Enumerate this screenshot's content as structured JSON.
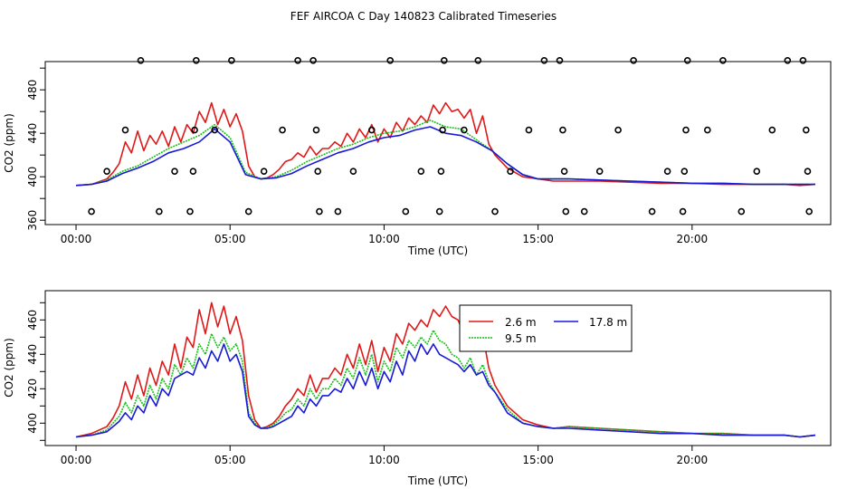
{
  "title": "FEF AIRCOA C  Day 140823  Calibrated Timeseries",
  "colors": {
    "red": "#e01818",
    "green": "#18c018",
    "blue": "#1818d8",
    "axis": "#000000"
  },
  "chart_data": [
    {
      "type": "scatter+line",
      "xlabel": "Time (UTC)",
      "ylabel": "CO2 (ppm)",
      "xlim": [
        -1,
        24.5
      ],
      "ylim": [
        356,
        506
      ],
      "xticks": [
        0,
        5,
        10,
        15,
        20
      ],
      "xtick_labels": [
        "00:00",
        "05:00",
        "10:00",
        "15:00",
        "20:00"
      ],
      "yticks": [
        360,
        400,
        440,
        480
      ],
      "yticks_minor": [
        380,
        420,
        460,
        500
      ],
      "lines": [
        {
          "name": "2.6 m",
          "color": "red",
          "x": [
            0,
            0.5,
            1,
            1.2,
            1.4,
            1.6,
            1.8,
            2,
            2.2,
            2.4,
            2.6,
            2.8,
            3,
            3.2,
            3.4,
            3.6,
            3.8,
            4,
            4.2,
            4.4,
            4.6,
            4.8,
            5,
            5.2,
            5.4,
            5.6,
            5.8,
            6,
            6.2,
            6.4,
            6.6,
            6.8,
            7,
            7.2,
            7.4,
            7.6,
            7.8,
            8,
            8.2,
            8.4,
            8.6,
            8.8,
            9,
            9.2,
            9.4,
            9.6,
            9.8,
            10,
            10.2,
            10.4,
            10.6,
            10.8,
            11,
            11.2,
            11.4,
            11.6,
            11.8,
            12,
            12.2,
            12.4,
            12.6,
            12.8,
            13,
            13.2,
            13.4,
            13.6,
            14,
            14.5,
            15,
            15.5,
            16,
            17,
            18,
            19,
            20,
            21,
            22,
            23,
            23.5,
            24
          ],
          "y": [
            392,
            393,
            398,
            404,
            412,
            432,
            422,
            442,
            424,
            438,
            430,
            442,
            428,
            446,
            432,
            448,
            440,
            460,
            450,
            468,
            448,
            462,
            446,
            458,
            442,
            410,
            400,
            398,
            399,
            402,
            407,
            414,
            416,
            422,
            418,
            428,
            420,
            426,
            426,
            432,
            428,
            440,
            432,
            444,
            436,
            448,
            432,
            444,
            436,
            450,
            442,
            454,
            448,
            456,
            450,
            466,
            458,
            468,
            460,
            462,
            454,
            462,
            440,
            456,
            430,
            420,
            408,
            400,
            398,
            396,
            396,
            396,
            395,
            394,
            394,
            393,
            393,
            393,
            392,
            393
          ]
        },
        {
          "name": "9.5 m",
          "color": "green",
          "x": [
            0,
            0.5,
            1,
            1.5,
            2,
            2.5,
            3,
            3.5,
            4,
            4.5,
            5,
            5.5,
            6,
            6.5,
            7,
            7.5,
            8,
            8.5,
            9,
            9.5,
            10,
            10.5,
            11,
            11.5,
            12,
            12.5,
            13,
            13.5,
            14,
            14.5,
            15,
            16,
            17,
            18,
            19,
            20,
            21,
            22,
            23,
            24
          ],
          "y": [
            392,
            393,
            397,
            405,
            410,
            418,
            426,
            432,
            438,
            448,
            436,
            404,
            398,
            400,
            406,
            414,
            420,
            426,
            430,
            436,
            440,
            442,
            446,
            452,
            446,
            444,
            434,
            424,
            412,
            402,
            398,
            398,
            397,
            396,
            395,
            394,
            394,
            393,
            393,
            393
          ]
        },
        {
          "name": "17.8 m",
          "color": "blue",
          "x": [
            0,
            0.5,
            1,
            1.5,
            2,
            2.5,
            3,
            3.5,
            4,
            4.5,
            5,
            5.5,
            6,
            6.5,
            7,
            7.5,
            8,
            8.5,
            9,
            9.5,
            10,
            10.5,
            11,
            11.5,
            12,
            12.5,
            13,
            13.5,
            14,
            14.5,
            15,
            16,
            17,
            18,
            19,
            20,
            21,
            22,
            23,
            24
          ],
          "y": [
            392,
            393,
            396,
            403,
            408,
            414,
            422,
            426,
            432,
            444,
            432,
            402,
            398,
            399,
            403,
            410,
            416,
            422,
            426,
            432,
            436,
            438,
            443,
            446,
            440,
            438,
            432,
            424,
            412,
            402,
            398,
            398,
            397,
            396,
            395,
            394,
            394,
            393,
            393,
            393
          ]
        }
      ],
      "points": [
        [
          0.5,
          368
        ],
        [
          1.0,
          405
        ],
        [
          1.6,
          443
        ],
        [
          2.1,
          507
        ],
        [
          2.7,
          368
        ],
        [
          3.2,
          405
        ],
        [
          3.7,
          368
        ],
        [
          3.8,
          405
        ],
        [
          3.85,
          443
        ],
        [
          3.9,
          507
        ],
        [
          4.5,
          443
        ],
        [
          5.05,
          507
        ],
        [
          5.6,
          368
        ],
        [
          6.1,
          405
        ],
        [
          6.7,
          443
        ],
        [
          7.2,
          507
        ],
        [
          7.7,
          507
        ],
        [
          7.8,
          443
        ],
        [
          7.85,
          405
        ],
        [
          7.9,
          368
        ],
        [
          8.5,
          368
        ],
        [
          9.0,
          405
        ],
        [
          9.6,
          443
        ],
        [
          10.2,
          507
        ],
        [
          10.7,
          368
        ],
        [
          11.2,
          405
        ],
        [
          11.8,
          368
        ],
        [
          11.85,
          405
        ],
        [
          11.9,
          443
        ],
        [
          11.95,
          507
        ],
        [
          12.6,
          443
        ],
        [
          13.05,
          507
        ],
        [
          13.6,
          368
        ],
        [
          14.1,
          405
        ],
        [
          14.7,
          443
        ],
        [
          15.2,
          507
        ],
        [
          15.7,
          507
        ],
        [
          15.8,
          443
        ],
        [
          15.85,
          405
        ],
        [
          15.9,
          368
        ],
        [
          16.5,
          368
        ],
        [
          17.0,
          405
        ],
        [
          17.6,
          443
        ],
        [
          18.1,
          507
        ],
        [
          18.7,
          368
        ],
        [
          19.2,
          405
        ],
        [
          19.7,
          368
        ],
        [
          19.75,
          405
        ],
        [
          19.8,
          443
        ],
        [
          19.85,
          507
        ],
        [
          20.5,
          443
        ],
        [
          21.0,
          507
        ],
        [
          21.6,
          368
        ],
        [
          22.1,
          405
        ],
        [
          22.6,
          443
        ],
        [
          23.1,
          507
        ],
        [
          23.6,
          507
        ],
        [
          23.7,
          443
        ],
        [
          23.75,
          405
        ],
        [
          23.8,
          368
        ]
      ]
    },
    {
      "type": "line",
      "xlabel": "Time (UTC)",
      "ylabel": "CO2 (ppm)",
      "xlim": [
        -1,
        24.5
      ],
      "ylim": [
        387,
        477
      ],
      "xticks": [
        0,
        5,
        10,
        15,
        20
      ],
      "xtick_labels": [
        "00:00",
        "05:00",
        "10:00",
        "15:00",
        "20:00"
      ],
      "yticks": [
        400,
        420,
        440,
        460
      ],
      "yticks_minor": [
        390,
        410,
        430,
        450,
        470
      ],
      "legend": {
        "entries": [
          "2.6 m",
          "17.8 m",
          "9.5 m"
        ],
        "position": "top-center"
      },
      "lines": [
        {
          "name": "2.6 m",
          "color": "red",
          "x": [
            0,
            0.5,
            1,
            1.2,
            1.4,
            1.6,
            1.8,
            2,
            2.2,
            2.4,
            2.6,
            2.8,
            3,
            3.2,
            3.4,
            3.6,
            3.8,
            4,
            4.2,
            4.4,
            4.6,
            4.8,
            5,
            5.2,
            5.4,
            5.6,
            5.8,
            6,
            6.2,
            6.4,
            6.6,
            6.8,
            7,
            7.2,
            7.4,
            7.6,
            7.8,
            8,
            8.2,
            8.4,
            8.6,
            8.8,
            9,
            9.2,
            9.4,
            9.6,
            9.8,
            10,
            10.2,
            10.4,
            10.6,
            10.8,
            11,
            11.2,
            11.4,
            11.6,
            11.8,
            12,
            12.2,
            12.4,
            12.6,
            12.8,
            13,
            13.2,
            13.4,
            13.6,
            14,
            14.5,
            15,
            15.5,
            16,
            17,
            18,
            19,
            20,
            21,
            22,
            23,
            23.5,
            24
          ],
          "y": [
            392,
            394,
            398,
            403,
            410,
            424,
            414,
            428,
            416,
            432,
            422,
            436,
            428,
            446,
            432,
            450,
            444,
            466,
            452,
            470,
            456,
            468,
            452,
            462,
            448,
            416,
            402,
            397,
            398,
            400,
            404,
            410,
            414,
            420,
            416,
            428,
            418,
            426,
            426,
            432,
            428,
            440,
            432,
            446,
            434,
            448,
            430,
            444,
            436,
            452,
            446,
            458,
            454,
            460,
            456,
            466,
            462,
            468,
            462,
            460,
            452,
            458,
            442,
            452,
            432,
            422,
            410,
            402,
            399,
            397,
            398,
            397,
            396,
            395,
            394,
            394,
            393,
            393,
            392,
            393
          ]
        },
        {
          "name": "9.5 m",
          "color": "green",
          "x": [
            0,
            0.5,
            1,
            1.2,
            1.4,
            1.6,
            1.8,
            2,
            2.2,
            2.4,
            2.6,
            2.8,
            3,
            3.2,
            3.4,
            3.6,
            3.8,
            4,
            4.2,
            4.4,
            4.6,
            4.8,
            5,
            5.2,
            5.4,
            5.6,
            5.8,
            6,
            6.2,
            6.4,
            6.6,
            6.8,
            7,
            7.2,
            7.4,
            7.6,
            7.8,
            8,
            8.2,
            8.4,
            8.6,
            8.8,
            9,
            9.2,
            9.4,
            9.6,
            9.8,
            10,
            10.2,
            10.4,
            10.6,
            10.8,
            11,
            11.2,
            11.4,
            11.6,
            11.8,
            12,
            12.2,
            12.4,
            12.6,
            12.8,
            13,
            13.2,
            13.4,
            13.6,
            14,
            14.5,
            15,
            15.5,
            16,
            17,
            18,
            19,
            20,
            21,
            22,
            23,
            23.5,
            24
          ],
          "y": [
            392,
            393,
            396,
            400,
            404,
            412,
            406,
            416,
            410,
            422,
            414,
            426,
            420,
            434,
            428,
            438,
            432,
            446,
            440,
            452,
            444,
            450,
            442,
            446,
            436,
            406,
            400,
            397,
            397,
            399,
            402,
            406,
            408,
            414,
            410,
            420,
            414,
            420,
            420,
            426,
            422,
            432,
            426,
            438,
            428,
            440,
            424,
            436,
            430,
            444,
            438,
            448,
            444,
            450,
            446,
            454,
            448,
            446,
            440,
            438,
            432,
            438,
            428,
            434,
            424,
            418,
            408,
            400,
            398,
            397,
            398,
            397,
            396,
            395,
            394,
            394,
            393,
            393,
            392,
            393
          ]
        },
        {
          "name": "17.8 m",
          "color": "blue",
          "x": [
            0,
            0.5,
            1,
            1.2,
            1.4,
            1.6,
            1.8,
            2,
            2.2,
            2.4,
            2.6,
            2.8,
            3,
            3.2,
            3.4,
            3.6,
            3.8,
            4,
            4.2,
            4.4,
            4.6,
            4.8,
            5,
            5.2,
            5.4,
            5.6,
            5.8,
            6,
            6.2,
            6.4,
            6.6,
            6.8,
            7,
            7.2,
            7.4,
            7.6,
            7.8,
            8,
            8.2,
            8.4,
            8.6,
            8.8,
            9,
            9.2,
            9.4,
            9.6,
            9.8,
            10,
            10.2,
            10.4,
            10.6,
            10.8,
            11,
            11.2,
            11.4,
            11.6,
            11.8,
            12,
            12.2,
            12.4,
            12.6,
            12.8,
            13,
            13.2,
            13.4,
            13.6,
            14,
            14.5,
            15,
            15.5,
            16,
            17,
            18,
            19,
            20,
            21,
            22,
            23,
            23.5,
            24
          ],
          "y": [
            392,
            393,
            395,
            398,
            401,
            406,
            402,
            410,
            406,
            416,
            410,
            420,
            416,
            426,
            428,
            430,
            428,
            438,
            432,
            442,
            436,
            446,
            436,
            440,
            430,
            404,
            399,
            397,
            397,
            398,
            400,
            402,
            404,
            410,
            406,
            414,
            410,
            416,
            416,
            420,
            418,
            426,
            420,
            430,
            422,
            432,
            420,
            430,
            424,
            436,
            428,
            442,
            436,
            446,
            440,
            446,
            440,
            438,
            436,
            434,
            430,
            434,
            428,
            430,
            422,
            418,
            406,
            400,
            398,
            397,
            397,
            396,
            395,
            394,
            394,
            393,
            393,
            393,
            392,
            393
          ]
        }
      ]
    }
  ]
}
